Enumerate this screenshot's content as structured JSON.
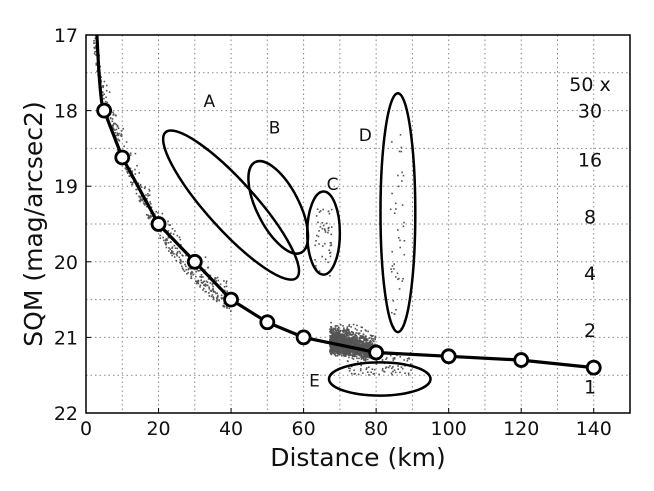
{
  "chart_data": {
    "type": "scatter",
    "title": "",
    "xlabel": "Distance (km)",
    "ylabel": "SQM (mag/arcsec2)",
    "xlim": [
      0,
      150
    ],
    "ylim": [
      22,
      17
    ],
    "y_inverted": true,
    "grid": true,
    "x_ticks": [
      "0",
      "20",
      "40",
      "60",
      "80",
      "100",
      "120",
      "140"
    ],
    "x_tick_values": [
      0,
      20,
      40,
      60,
      80,
      100,
      120,
      140
    ],
    "y_ticks": [
      "17",
      "18",
      "19",
      "20",
      "21",
      "22"
    ],
    "y_tick_values": [
      17,
      18,
      19,
      20,
      21,
      22
    ],
    "scatter_color": "#555555",
    "curve": {
      "x": [
        5,
        10,
        20,
        30,
        40,
        50,
        60,
        80,
        100,
        120,
        140
      ],
      "y": [
        18.0,
        18.62,
        19.5,
        20.0,
        20.5,
        20.8,
        21.0,
        21.2,
        21.25,
        21.3,
        21.4
      ]
    },
    "right_labels": [
      {
        "text": "50 x",
        "y": 17.65
      },
      {
        "text": "30",
        "y": 18.0
      },
      {
        "text": "16",
        "y": 18.65
      },
      {
        "text": "8",
        "y": 19.4
      },
      {
        "text": "4",
        "y": 20.15
      },
      {
        "text": "2",
        "y": 20.9
      },
      {
        "text": "1",
        "y": 21.65
      }
    ],
    "ellipses": [
      {
        "label": "A",
        "cx": 40,
        "cy": 19.25,
        "rx": 27,
        "ry": 0.32,
        "angle_deg": 48,
        "label_x": 34,
        "label_y": 17.95
      },
      {
        "label": "B",
        "cx": 53,
        "cy": 19.28,
        "rx": 14,
        "ry": 0.28,
        "angle_deg": 63,
        "label_x": 52,
        "label_y": 18.3
      },
      {
        "label": "C",
        "cx": 65.5,
        "cy": 19.62,
        "rx": 4.5,
        "ry": 0.55,
        "angle_deg": 0,
        "label_x": 68,
        "label_y": 19.05
      },
      {
        "label": "D",
        "cx": 86,
        "cy": 19.35,
        "rx": 4.8,
        "ry": 1.58,
        "angle_deg": 0,
        "label_x": 77,
        "label_y": 18.4
      },
      {
        "label": "E",
        "cx": 81,
        "cy": 21.55,
        "rx": 14,
        "ry": 0.22,
        "angle_deg": 0,
        "label_x": 63,
        "label_y": 21.65
      }
    ]
  }
}
